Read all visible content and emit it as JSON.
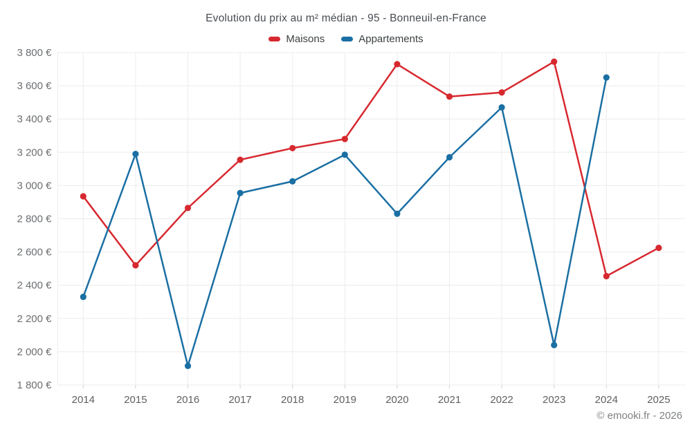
{
  "title": "Evolution du prix au m² médian - 95 - Bonneuil-en-France",
  "legend": {
    "items": [
      {
        "label": "Maisons",
        "color": "#d7282f"
      },
      {
        "label": "Appartements",
        "color": "#1a6fa3"
      }
    ]
  },
  "footer": {
    "copyright": "© emooki.fr - 2026"
  },
  "colors": {
    "grid": "#ececec",
    "tick": "#d0d0d0",
    "maisons": "#d7282f",
    "appartements": "#1a6fa3"
  },
  "chart_data": {
    "type": "line",
    "title": "Evolution du prix au m² médian - 95 - Bonneuil-en-France",
    "categories": [
      "2014",
      "2015",
      "2016",
      "2017",
      "2018",
      "2019",
      "2020",
      "2021",
      "2022",
      "2023",
      "2024",
      "2025"
    ],
    "series": [
      {
        "name": "Maisons",
        "color": "#d7282f",
        "values": [
          2935,
          2520,
          2865,
          3155,
          3225,
          3280,
          3730,
          3535,
          3560,
          3745,
          2455,
          2625
        ]
      },
      {
        "name": "Appartements",
        "color": "#1a6fa3",
        "values": [
          2330,
          3190,
          1915,
          2955,
          3025,
          3185,
          2830,
          3170,
          3470,
          2040,
          3650,
          null
        ]
      }
    ],
    "ylim": [
      1800,
      3800
    ],
    "yticks": [
      {
        "value": 1800,
        "label": "1 800 €"
      },
      {
        "value": 2000,
        "label": "2 000 €"
      },
      {
        "value": 2200,
        "label": "2 200 €"
      },
      {
        "value": 2400,
        "label": "2 400 €"
      },
      {
        "value": 2600,
        "label": "2 600 €"
      },
      {
        "value": 2800,
        "label": "2 800 €"
      },
      {
        "value": 3000,
        "label": "3 000 €"
      },
      {
        "value": 3200,
        "label": "3 200 €"
      },
      {
        "value": 3400,
        "label": "3 400 €"
      },
      {
        "value": 3600,
        "label": "3 600 €"
      },
      {
        "value": 3800,
        "label": "3 800 €"
      }
    ],
    "grid": true,
    "legend_position": "top"
  }
}
